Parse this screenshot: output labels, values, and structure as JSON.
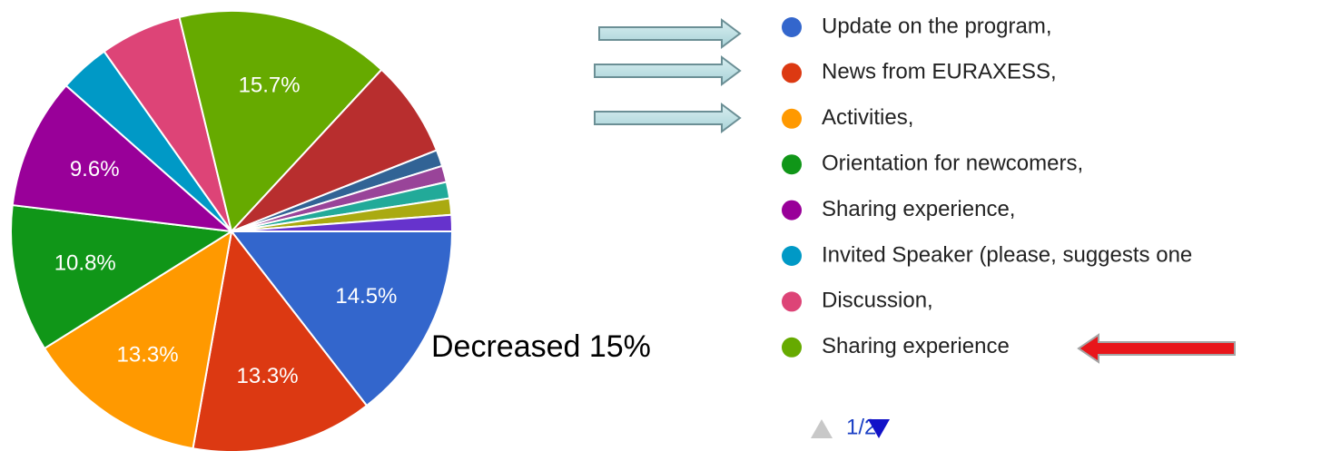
{
  "chart_data": {
    "type": "pie",
    "categories": [
      "Update on the program,",
      "News from EURAXESS,",
      "Activities,",
      "Orientation for newcomers,",
      "Sharing experience,",
      "Invited Speaker (please, suggests one",
      "Discussion,",
      "Sharing experience",
      null,
      null,
      null,
      null,
      null,
      null
    ],
    "values": [
      14.5,
      13.3,
      13.3,
      10.8,
      9.6,
      3.7,
      6.0,
      15.7,
      7.1,
      1.2,
      1.2,
      1.2,
      1.2,
      1.2
    ],
    "value_labels": [
      "14.5%",
      "13.3%",
      "13.3%",
      "10.8%",
      "9.6%",
      null,
      null,
      "15.7%",
      null,
      null,
      null,
      null,
      null,
      null
    ],
    "colors": [
      "#3366cc",
      "#dc3912",
      "#ff9900",
      "#109618",
      "#990099",
      "#0099c6",
      "#dd4477",
      "#66aa00",
      "#b82e2e",
      "#316395",
      "#994499",
      "#22aa99",
      "#aaaa11",
      "#6633cc"
    ],
    "annotation": "Decreased 15%",
    "pager": "1/2"
  }
}
